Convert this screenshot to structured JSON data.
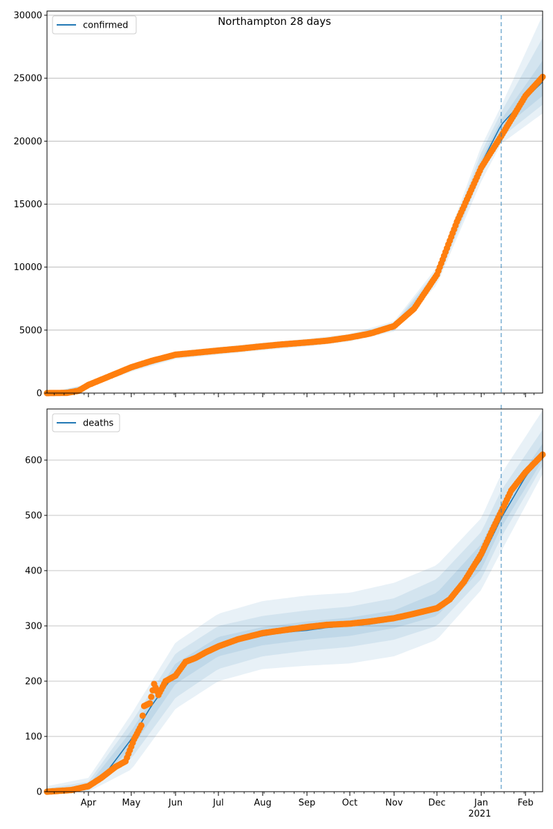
{
  "figure": {
    "title": "Northampton 28 days"
  },
  "colors": {
    "model_line": "#1f77b4",
    "observed_points": "#ff7f0e",
    "band": "#1f77b4",
    "grid": "#b0b0b0",
    "forecast_line": "#1f77b4"
  },
  "chart_data": [
    {
      "type": "line",
      "panel": "top",
      "title": "Northampton 28 days",
      "legend": {
        "placement": "top-left",
        "entries": [
          "confirmed"
        ]
      },
      "xlabel": "",
      "ylabel": "",
      "x_range": [
        "2020-03-03",
        "2021-02-13"
      ],
      "ylim": [
        0,
        30000
      ],
      "y_ticks": [
        0,
        5000,
        10000,
        15000,
        20000,
        25000,
        30000
      ],
      "y_tick_labels": [
        "0",
        "5000",
        "10000",
        "15000",
        "20000",
        "25000",
        "30000"
      ],
      "grid": "horizontal",
      "forecast_start": "2021-01-15",
      "series": [
        {
          "name": "confirmed",
          "kind": "line",
          "x": [
            "2020-03-03",
            "2020-03-17",
            "2020-03-25",
            "2020-04-01",
            "2020-04-15",
            "2020-05-01",
            "2020-05-15",
            "2020-06-01",
            "2020-06-15",
            "2020-07-01",
            "2020-07-15",
            "2020-08-01",
            "2020-08-15",
            "2020-09-01",
            "2020-09-15",
            "2020-10-01",
            "2020-10-15",
            "2020-11-01",
            "2020-11-15",
            "2020-12-01",
            "2020-12-15",
            "2021-01-01",
            "2021-01-15",
            "2021-02-01",
            "2021-02-13"
          ],
          "values": [
            0,
            10,
            150,
            600,
            1250,
            2000,
            2500,
            3000,
            3150,
            3350,
            3500,
            3700,
            3850,
            4000,
            4150,
            4400,
            4700,
            5300,
            6600,
            9300,
            13500,
            18200,
            21300,
            23400,
            24700
          ]
        },
        {
          "name": "observed",
          "kind": "scatter",
          "x": [
            "2020-03-03",
            "2020-03-17",
            "2020-03-25",
            "2020-04-01",
            "2020-04-15",
            "2020-05-01",
            "2020-05-15",
            "2020-06-01",
            "2020-06-15",
            "2020-07-01",
            "2020-07-15",
            "2020-08-01",
            "2020-08-15",
            "2020-09-01",
            "2020-09-15",
            "2020-10-01",
            "2020-10-15",
            "2020-11-01",
            "2020-11-15",
            "2020-12-01",
            "2020-12-15",
            "2021-01-01",
            "2021-01-15",
            "2021-02-01",
            "2021-02-13"
          ],
          "values": [
            0,
            20,
            180,
            650,
            1300,
            2050,
            2550,
            3050,
            3200,
            3380,
            3520,
            3720,
            3870,
            4020,
            4160,
            4420,
            4720,
            5320,
            6700,
            9400,
            13600,
            17900,
            20400,
            23600,
            25100
          ]
        }
      ],
      "bands": [
        {
          "x": [
            "2020-03-03",
            "2020-04-01",
            "2020-05-01",
            "2020-06-01",
            "2020-07-01",
            "2020-08-01",
            "2020-09-01",
            "2020-10-01",
            "2020-11-01",
            "2020-12-01",
            "2021-01-01",
            "2021-01-15",
            "2021-02-13"
          ],
          "lower": [
            0,
            480,
            1700,
            2700,
            3050,
            3400,
            3700,
            4100,
            4900,
            8600,
            16800,
            19800,
            22200
          ],
          "upper": [
            0,
            720,
            2300,
            3300,
            3650,
            4000,
            4300,
            4700,
            5700,
            10000,
            19600,
            22800,
            30000
          ]
        },
        {
          "x": [
            "2020-03-03",
            "2020-04-01",
            "2020-05-01",
            "2020-06-01",
            "2020-07-01",
            "2020-08-01",
            "2020-09-01",
            "2020-10-01",
            "2020-11-01",
            "2020-12-01",
            "2021-01-01",
            "2021-01-15",
            "2021-02-13"
          ],
          "lower": [
            0,
            530,
            1800,
            2800,
            3150,
            3500,
            3800,
            4200,
            5050,
            8850,
            17300,
            20300,
            22900
          ],
          "upper": [
            0,
            680,
            2200,
            3200,
            3550,
            3900,
            4200,
            4600,
            5550,
            9750,
            19100,
            22300,
            28200
          ]
        },
        {
          "x": [
            "2020-03-03",
            "2020-04-01",
            "2020-05-01",
            "2020-06-01",
            "2020-07-01",
            "2020-08-01",
            "2020-09-01",
            "2020-10-01",
            "2020-11-01",
            "2020-12-01",
            "2021-01-01",
            "2021-01-15",
            "2021-02-13"
          ],
          "lower": [
            0,
            570,
            1900,
            2900,
            3250,
            3600,
            3900,
            4300,
            5180,
            9080,
            17800,
            20900,
            23600
          ],
          "upper": [
            0,
            640,
            2100,
            3100,
            3450,
            3800,
            4100,
            4500,
            5420,
            9520,
            18600,
            21700,
            26400
          ]
        }
      ]
    },
    {
      "type": "line",
      "panel": "bottom",
      "legend": {
        "placement": "top-left",
        "entries": [
          "deaths"
        ]
      },
      "xlabel": "",
      "ylabel": "",
      "x_range": [
        "2020-03-03",
        "2021-02-13"
      ],
      "ylim": [
        0,
        700
      ],
      "y_ticks": [
        0,
        100,
        200,
        300,
        400,
        500,
        600
      ],
      "y_tick_labels": [
        "0",
        "100",
        "200",
        "300",
        "400",
        "500",
        "600"
      ],
      "x_tick_labels": [
        "Apr",
        "May",
        "Jun",
        "Jul",
        "Aug",
        "Sep",
        "Oct",
        "Nov",
        "Dec",
        "Jan",
        "Feb"
      ],
      "x_tick_dates": [
        "2020-04-01",
        "2020-05-01",
        "2020-06-01",
        "2020-07-01",
        "2020-08-01",
        "2020-09-01",
        "2020-10-01",
        "2020-11-01",
        "2020-12-01",
        "2021-01-01",
        "2021-02-01"
      ],
      "x_year_label": "2021",
      "grid": "horizontal",
      "forecast_start": "2021-01-15",
      "series": [
        {
          "name": "deaths",
          "kind": "line",
          "x": [
            "2020-03-03",
            "2020-03-20",
            "2020-04-01",
            "2020-04-15",
            "2020-05-01",
            "2020-05-15",
            "2020-06-01",
            "2020-06-15",
            "2020-07-01",
            "2020-07-15",
            "2020-08-01",
            "2020-08-15",
            "2020-09-01",
            "2020-09-15",
            "2020-10-01",
            "2020-10-15",
            "2020-11-01",
            "2020-11-15",
            "2020-12-01",
            "2020-12-15",
            "2021-01-01",
            "2021-01-15",
            "2021-02-01",
            "2021-02-13"
          ],
          "values": [
            0,
            2,
            8,
            40,
            95,
            155,
            215,
            245,
            262,
            272,
            282,
            288,
            292,
            297,
            300,
            303,
            310,
            318,
            330,
            360,
            420,
            495,
            570,
            610
          ]
        },
        {
          "name": "observed",
          "kind": "scatter",
          "x": [
            "2020-03-03",
            "2020-03-20",
            "2020-04-01",
            "2020-04-10",
            "2020-04-20",
            "2020-04-27",
            "2020-05-03",
            "2020-05-08",
            "2020-05-10",
            "2020-05-14",
            "2020-05-17",
            "2020-05-20",
            "2020-05-25",
            "2020-06-01",
            "2020-06-08",
            "2020-06-15",
            "2020-06-22",
            "2020-07-01",
            "2020-07-15",
            "2020-08-01",
            "2020-08-15",
            "2020-09-01",
            "2020-09-15",
            "2020-10-01",
            "2020-10-15",
            "2020-11-01",
            "2020-11-15",
            "2020-12-01",
            "2020-12-10",
            "2020-12-20",
            "2021-01-01",
            "2021-01-10",
            "2021-01-16",
            "2021-01-22",
            "2021-02-01",
            "2021-02-13"
          ],
          "values": [
            0,
            3,
            10,
            25,
            45,
            55,
            95,
            120,
            155,
            160,
            195,
            175,
            200,
            210,
            235,
            242,
            252,
            263,
            276,
            287,
            292,
            298,
            302,
            304,
            308,
            314,
            322,
            332,
            348,
            380,
            430,
            480,
            512,
            545,
            578,
            610
          ]
        }
      ],
      "bands": [
        {
          "x": [
            "2020-03-03",
            "2020-04-01",
            "2020-05-01",
            "2020-06-01",
            "2020-07-01",
            "2020-08-01",
            "2020-09-01",
            "2020-10-01",
            "2020-11-01",
            "2020-12-01",
            "2021-01-01",
            "2021-01-15",
            "2021-02-13"
          ],
          "lower": [
            0,
            0,
            40,
            150,
            200,
            222,
            228,
            232,
            245,
            275,
            365,
            435,
            575
          ],
          "upper": [
            10,
            25,
            140,
            270,
            322,
            345,
            355,
            360,
            378,
            410,
            495,
            575,
            690
          ]
        },
        {
          "x": [
            "2020-03-03",
            "2020-04-01",
            "2020-05-01",
            "2020-06-01",
            "2020-07-01",
            "2020-08-01",
            "2020-09-01",
            "2020-10-01",
            "2020-11-01",
            "2020-12-01",
            "2021-01-01",
            "2021-01-15",
            "2021-02-13"
          ],
          "lower": [
            0,
            2,
            60,
            170,
            222,
            245,
            255,
            262,
            275,
            300,
            385,
            460,
            590
          ],
          "upper": [
            6,
            18,
            125,
            250,
            300,
            318,
            328,
            335,
            350,
            385,
            470,
            545,
            655
          ]
        },
        {
          "x": [
            "2020-03-03",
            "2020-04-01",
            "2020-05-01",
            "2020-06-01",
            "2020-07-01",
            "2020-08-01",
            "2020-09-01",
            "2020-10-01",
            "2020-11-01",
            "2020-12-01",
            "2021-01-01",
            "2021-01-15",
            "2021-02-13"
          ],
          "lower": [
            0,
            4,
            78,
            195,
            245,
            265,
            275,
            282,
            296,
            318,
            402,
            478,
            600
          ],
          "upper": [
            3,
            12,
            110,
            232,
            280,
            298,
            308,
            315,
            328,
            360,
            448,
            520,
            630
          ]
        }
      ]
    }
  ]
}
